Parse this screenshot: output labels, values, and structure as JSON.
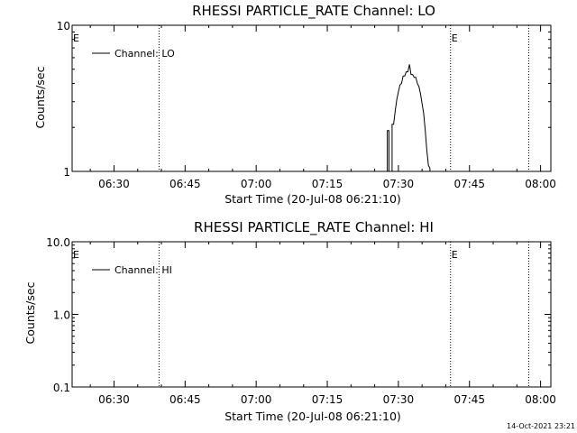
{
  "chart_data": [
    {
      "type": "line",
      "title": "RHESSI PARTICLE_RATE Channel: LO",
      "xlabel": "Start Time (20-Jul-08 06:21:10)",
      "ylabel": "Counts/sec",
      "x_tick_labels": [
        "06:30",
        "06:45",
        "07:00",
        "07:15",
        "07:30",
        "07:45",
        "08:00"
      ],
      "y_scale": "log",
      "ylim": [
        1,
        10
      ],
      "y_tick_labels": [
        "1",
        "10"
      ],
      "xlim": [
        "06:21:10",
        "08:02:10"
      ],
      "legend": "upper-left",
      "series": [
        {
          "name": "Channel: LO",
          "x": [
            "06:21:10",
            "07:27:40",
            "07:27:40",
            "07:28:00",
            "07:28:00",
            "07:28:40",
            "07:28:40",
            "07:29:00",
            "07:29:20",
            "07:29:40",
            "07:30:00",
            "07:30:20",
            "07:30:40",
            "07:31:00",
            "07:31:20",
            "07:31:40",
            "07:32:00",
            "07:32:20",
            "07:32:40",
            "07:33:00",
            "07:33:20",
            "07:33:40",
            "07:34:00",
            "07:34:20",
            "07:34:40",
            "07:35:00",
            "07:35:20",
            "07:35:40",
            "07:36:00",
            "07:36:20",
            "07:36:40",
            "07:36:40",
            "08:02:10"
          ],
          "y": [
            1,
            1,
            1.9,
            1.9,
            1,
            1,
            2.1,
            2.1,
            2.6,
            3.1,
            3.5,
            3.9,
            4.0,
            4.5,
            4.5,
            4.8,
            4.8,
            5.4,
            4.6,
            4.6,
            4.4,
            4.4,
            4.0,
            3.8,
            3.4,
            2.9,
            2.5,
            1.9,
            1.4,
            1.1,
            1.05,
            1,
            1
          ]
        }
      ],
      "markers": [
        {
          "x": "06:39:30",
          "label": ""
        },
        {
          "x": "07:41:00",
          "label": "E"
        },
        {
          "x": "07:57:30",
          "label": ""
        }
      ],
      "edge_marker": {
        "label": "E"
      }
    },
    {
      "type": "line",
      "title": "RHESSI PARTICLE_RATE Channel: HI",
      "xlabel": "Start Time (20-Jul-08 06:21:10)",
      "ylabel": "Counts/sec",
      "x_tick_labels": [
        "06:30",
        "06:45",
        "07:00",
        "07:15",
        "07:30",
        "07:45",
        "08:00"
      ],
      "y_scale": "log",
      "ylim": [
        0.1,
        10
      ],
      "y_tick_labels": [
        "0.1",
        "1.0",
        "10.0"
      ],
      "xlim": [
        "06:21:10",
        "08:02:10"
      ],
      "legend": "upper-left",
      "series": [
        {
          "name": "Channel: HI",
          "x": [],
          "y": []
        }
      ],
      "markers": [
        {
          "x": "06:39:30",
          "label": ""
        },
        {
          "x": "07:41:00",
          "label": "E"
        },
        {
          "x": "07:57:30",
          "label": ""
        }
      ],
      "edge_marker": {
        "label": "E"
      }
    }
  ],
  "footer": {
    "timestamp": "14-Oct-2021 23:21"
  }
}
